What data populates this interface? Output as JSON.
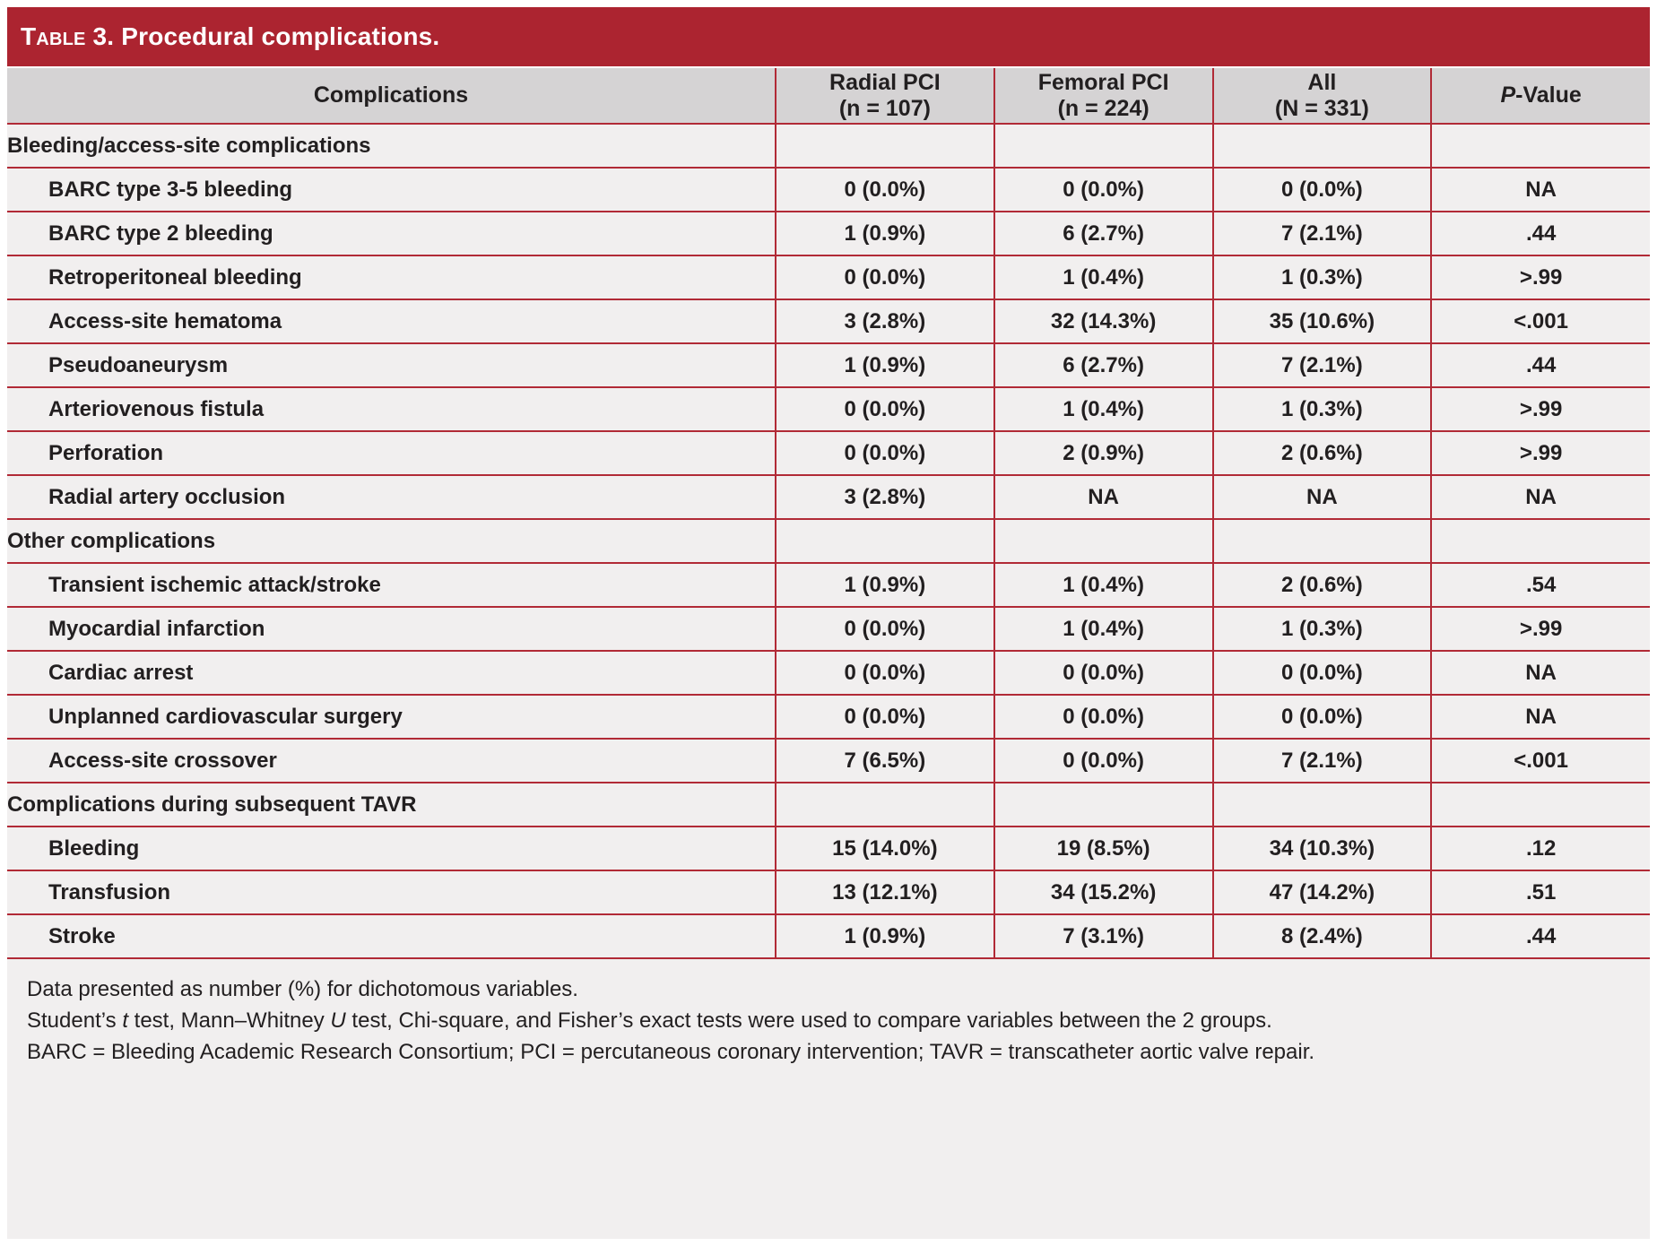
{
  "title": {
    "label_smallcaps": "Table 3.",
    "text": "Procedural complications."
  },
  "table": {
    "header": {
      "complications": "Complications",
      "radial": {
        "line1": "Radial PCI",
        "line2": "(n = 107)"
      },
      "femoral": {
        "line1": "Femoral PCI",
        "line2": "(n = 224)"
      },
      "all": {
        "line1": "All",
        "line2": "(N = 331)"
      },
      "p_value": {
        "italic": "P",
        "rest": "-Value"
      }
    },
    "sections": [
      {
        "label": "Bleeding/access-site complications",
        "rows": [
          {
            "label": "BARC type 3-5 bleeding",
            "values": [
              "0 (0.0%)",
              "0 (0.0%)",
              "0 (0.0%)",
              "NA"
            ]
          },
          {
            "label": "BARC type 2 bleeding",
            "values": [
              "1 (0.9%)",
              "6 (2.7%)",
              "7 (2.1%)",
              ".44"
            ]
          },
          {
            "label": "Retroperitoneal bleeding",
            "values": [
              "0 (0.0%)",
              "1 (0.4%)",
              "1 (0.3%)",
              ">.99"
            ]
          },
          {
            "label": "Access-site hematoma",
            "values": [
              "3 (2.8%)",
              "32 (14.3%)",
              "35 (10.6%)",
              "<.001"
            ]
          },
          {
            "label": "Pseudoaneurysm",
            "values": [
              "1 (0.9%)",
              "6 (2.7%)",
              "7 (2.1%)",
              ".44"
            ]
          },
          {
            "label": "Arteriovenous fistula",
            "values": [
              "0 (0.0%)",
              "1 (0.4%)",
              "1 (0.3%)",
              ">.99"
            ]
          },
          {
            "label": "Perforation",
            "values": [
              "0 (0.0%)",
              "2 (0.9%)",
              "2 (0.6%)",
              ">.99"
            ]
          },
          {
            "label": "Radial artery occlusion",
            "values": [
              "3 (2.8%)",
              "NA",
              "NA",
              "NA"
            ]
          }
        ]
      },
      {
        "label": "Other complications",
        "rows": [
          {
            "label": "Transient ischemic attack/stroke",
            "values": [
              "1 (0.9%)",
              "1 (0.4%)",
              "2 (0.6%)",
              ".54"
            ]
          },
          {
            "label": "Myocardial infarction",
            "values": [
              "0 (0.0%)",
              "1 (0.4%)",
              "1 (0.3%)",
              ">.99"
            ]
          },
          {
            "label": "Cardiac arrest",
            "values": [
              "0 (0.0%)",
              "0 (0.0%)",
              "0 (0.0%)",
              "NA"
            ]
          },
          {
            "label": "Unplanned cardiovascular surgery",
            "values": [
              "0 (0.0%)",
              "0 (0.0%)",
              "0 (0.0%)",
              "NA"
            ]
          },
          {
            "label": "Access-site crossover",
            "values": [
              "7 (6.5%)",
              "0 (0.0%)",
              "7 (2.1%)",
              "<.001"
            ]
          }
        ]
      },
      {
        "label": "Complications during subsequent TAVR",
        "rows": [
          {
            "label": "Bleeding",
            "values": [
              "15 (14.0%)",
              "19 (8.5%)",
              "34 (10.3%)",
              ".12"
            ]
          },
          {
            "label": "Transfusion",
            "values": [
              "13 (12.1%)",
              "34 (15.2%)",
              "47 (14.2%)",
              ".51"
            ]
          },
          {
            "label": "Stroke",
            "values": [
              "1 (0.9%)",
              "7 (3.1%)",
              "8 (2.4%)",
              ".44"
            ]
          }
        ]
      }
    ]
  },
  "footnotes": {
    "line1": "Data presented as number (%) for dichotomous variables.",
    "line2": {
      "a": "Student’s ",
      "b": "t",
      "c": " test, Mann–Whitney ",
      "d": "U",
      "e": " test, Chi-square, and Fisher’s exact tests were used to compare variables between the 2 groups."
    },
    "line3": "BARC = Bleeding Academic Research Consortium; PCI = percutaneous coronary intervention; TAVR = transcatheter aortic valve repair."
  },
  "colors": {
    "accent_red": "#ac2430",
    "border_red": "#b12a36",
    "header_gray": "#d5d3d4",
    "row_background": "#f1efef",
    "text": "#221f20"
  }
}
